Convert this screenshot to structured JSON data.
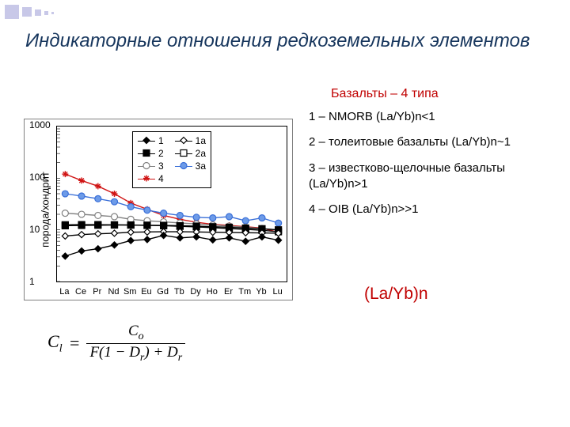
{
  "title": "Индикаторные отношения редкоземельных элементов",
  "subtitle": "Базальты – 4 типа",
  "bullets": {
    "b1": "1 – NMORB (La/Yb)n<1",
    "b2": "2 – толеитовые базальты (La/Yb)n~1",
    "b3": "3 – известково-щелочные базальты (La/Yb)n>1",
    "b4": "4 – OIB (La/Yb)n>>1"
  },
  "ratio_label": "(La/Yb)n",
  "formula": {
    "lhs": "C",
    "lhs_sub": "l",
    "eq": "=",
    "num": "C",
    "num_sub": "o",
    "den_a": "F",
    "den_b": "(1 − D",
    "den_b_sub": "r",
    "den_c": ") + D",
    "den_c_sub": "r"
  },
  "chart": {
    "type": "line",
    "ylabel": "порода/хондрит",
    "yscale": "log",
    "ylim": [
      1,
      1000
    ],
    "yticks": [
      1,
      10,
      100,
      1000
    ],
    "categories": [
      "La",
      "Ce",
      "Pr",
      "Nd",
      "Sm",
      "Eu",
      "Gd",
      "Tb",
      "Dy",
      "Ho",
      "Er",
      "Tm",
      "Yb",
      "Lu"
    ],
    "label_fontsize": 12,
    "background_color": "#ffffff",
    "axis_color": "#000000",
    "grid_color": "#cccccc",
    "line_width": 1.4,
    "marker_size": 8,
    "legend": {
      "position": "top-center",
      "border_color": "#000000",
      "items": [
        "1",
        "1a",
        "2",
        "2a",
        "3",
        "3a",
        "4"
      ]
    },
    "series": {
      "s1": {
        "label": "1",
        "color": "#000000",
        "marker": "diamond",
        "fill": "#000000",
        "values": [
          3.1,
          3.9,
          4.3,
          5.1,
          6.2,
          6.5,
          7.8,
          7.0,
          7.3,
          6.4,
          7.0,
          6.0,
          7.3,
          6.3
        ]
      },
      "s1a": {
        "label": "1a",
        "color": "#000000",
        "marker": "diamond",
        "fill": "#ffffff",
        "values": [
          7.6,
          8.1,
          8.4,
          8.6,
          9.0,
          9.1,
          9.2,
          9.2,
          9.1,
          9.0,
          8.9,
          8.8,
          8.7,
          8.6
        ]
      },
      "s2": {
        "label": "2",
        "color": "#000000",
        "marker": "square",
        "fill": "#000000",
        "values": [
          12.0,
          12.2,
          12.3,
          12.4,
          12.4,
          12.3,
          12.2,
          12.0,
          11.8,
          11.5,
          11.2,
          10.8,
          10.5,
          10.0
        ]
      },
      "s2a": {
        "label": "2a",
        "color": "#000000",
        "marker": "square",
        "fill": "#ffffff",
        "values": [
          12.5,
          12.6,
          12.6,
          12.5,
          12.4,
          12.2,
          12.0,
          11.7,
          11.4,
          11.0,
          10.6,
          10.2,
          9.8,
          9.2
        ]
      },
      "s3": {
        "label": "3",
        "color": "#808080",
        "marker": "circle",
        "fill": "#ffffff",
        "values": [
          21,
          20,
          19,
          18,
          16,
          15,
          14.3,
          13.6,
          13,
          12.4,
          11.8,
          11.2,
          10.6,
          10
        ]
      },
      "s3a": {
        "label": "3a",
        "color": "#3a6fd8",
        "marker": "circle",
        "fill": "#6d9be8",
        "values": [
          50,
          45,
          40,
          35,
          28,
          24,
          21,
          19,
          17.5,
          17,
          18,
          15,
          17,
          13.5
        ]
      },
      "s4": {
        "label": "4",
        "color": "#d01414",
        "marker": "asterisk",
        "fill": "#d01414",
        "values": [
          120,
          90,
          70,
          50,
          33,
          25,
          19,
          16,
          14,
          12.8,
          12.2,
          11.5,
          10.8,
          9.0
        ]
      }
    }
  },
  "corner_color": "#c8c8e8"
}
